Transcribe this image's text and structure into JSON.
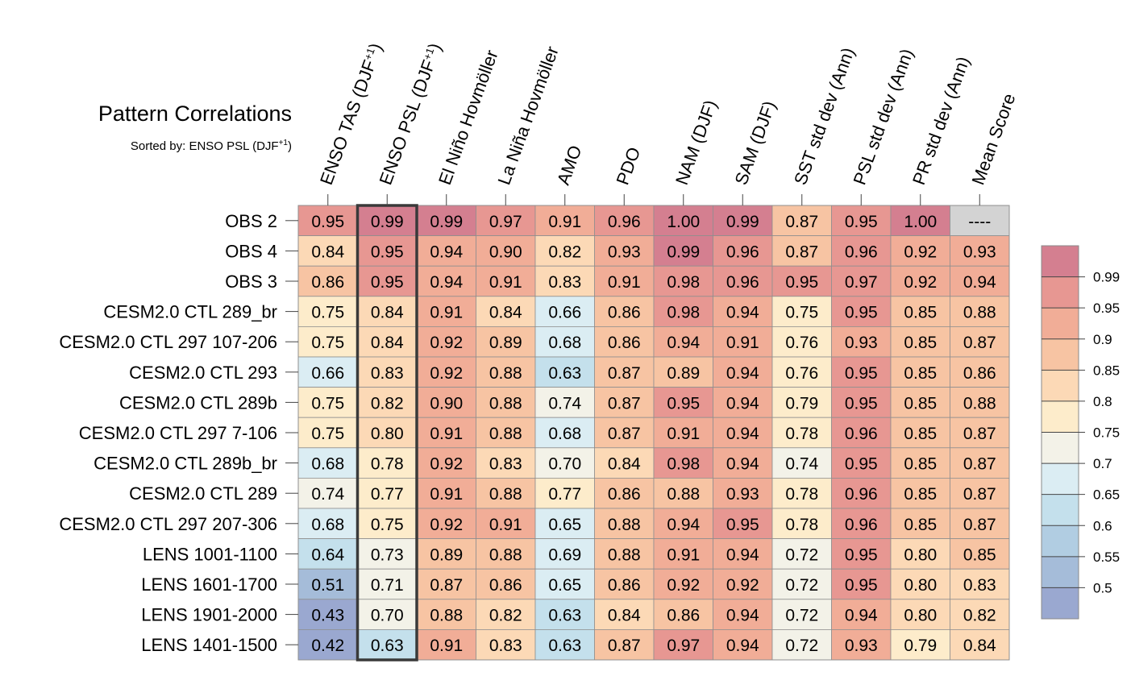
{
  "chart_data": {
    "type": "heatmap",
    "title": "Pattern Correlations",
    "subtitle": {
      "prefix": "Sorted by: ENSO PSL (DJF",
      "sup": "+1",
      "suffix": ")"
    },
    "columns": [
      {
        "label": "ENSO TAS (DJF",
        "sup": "+1",
        "suffix": ")"
      },
      {
        "label": "ENSO PSL (DJF",
        "sup": "+1",
        "suffix": ")"
      },
      {
        "label": "El Niño Hovmöller"
      },
      {
        "label": "La Niña Hovmöller"
      },
      {
        "label": "AMO"
      },
      {
        "label": "PDO"
      },
      {
        "label": "NAM (DJF)"
      },
      {
        "label": "SAM (DJF)"
      },
      {
        "label": "SST std dev (Ann)"
      },
      {
        "label": "PSL std dev (Ann)"
      },
      {
        "label": "PR std dev (Ann)"
      },
      {
        "label": "Mean Score"
      }
    ],
    "sorted_column_index": 1,
    "rows": [
      "OBS 2",
      "OBS 4",
      "OBS 3",
      "CESM2.0 CTL 289_br",
      "CESM2.0 CTL 297 107-206",
      "CESM2.0 CTL 293",
      "CESM2.0 CTL 289b",
      "CESM2.0 CTL 297 7-106",
      "CESM2.0 CTL 289b_br",
      "CESM2.0 CTL 289",
      "CESM2.0 CTL 297 207-306",
      "LENS 1001-1100",
      "LENS 1601-1700",
      "LENS 1901-2000",
      "LENS 1401-1500"
    ],
    "values": [
      [
        "0.95",
        "0.99",
        "0.99",
        "0.97",
        "0.91",
        "0.96",
        "1.00",
        "0.99",
        "0.87",
        "0.95",
        "1.00",
        "----"
      ],
      [
        "0.84",
        "0.95",
        "0.94",
        "0.90",
        "0.82",
        "0.93",
        "0.99",
        "0.96",
        "0.87",
        "0.96",
        "0.92",
        "0.93"
      ],
      [
        "0.86",
        "0.95",
        "0.94",
        "0.91",
        "0.83",
        "0.91",
        "0.98",
        "0.96",
        "0.95",
        "0.97",
        "0.92",
        "0.94"
      ],
      [
        "0.75",
        "0.84",
        "0.91",
        "0.84",
        "0.66",
        "0.86",
        "0.98",
        "0.94",
        "0.75",
        "0.95",
        "0.85",
        "0.88"
      ],
      [
        "0.75",
        "0.84",
        "0.92",
        "0.89",
        "0.68",
        "0.86",
        "0.94",
        "0.91",
        "0.76",
        "0.93",
        "0.85",
        "0.87"
      ],
      [
        "0.66",
        "0.83",
        "0.92",
        "0.88",
        "0.63",
        "0.87",
        "0.89",
        "0.94",
        "0.76",
        "0.95",
        "0.85",
        "0.86"
      ],
      [
        "0.75",
        "0.82",
        "0.90",
        "0.88",
        "0.74",
        "0.87",
        "0.95",
        "0.94",
        "0.79",
        "0.95",
        "0.85",
        "0.88"
      ],
      [
        "0.75",
        "0.80",
        "0.91",
        "0.88",
        "0.68",
        "0.87",
        "0.91",
        "0.94",
        "0.78",
        "0.96",
        "0.85",
        "0.87"
      ],
      [
        "0.68",
        "0.78",
        "0.92",
        "0.83",
        "0.70",
        "0.84",
        "0.98",
        "0.94",
        "0.74",
        "0.95",
        "0.85",
        "0.87"
      ],
      [
        "0.74",
        "0.77",
        "0.91",
        "0.88",
        "0.77",
        "0.86",
        "0.88",
        "0.93",
        "0.78",
        "0.96",
        "0.85",
        "0.87"
      ],
      [
        "0.68",
        "0.75",
        "0.92",
        "0.91",
        "0.65",
        "0.88",
        "0.94",
        "0.95",
        "0.78",
        "0.96",
        "0.85",
        "0.87"
      ],
      [
        "0.64",
        "0.73",
        "0.89",
        "0.88",
        "0.69",
        "0.88",
        "0.91",
        "0.94",
        "0.72",
        "0.95",
        "0.80",
        "0.85"
      ],
      [
        "0.51",
        "0.71",
        "0.87",
        "0.86",
        "0.65",
        "0.86",
        "0.92",
        "0.92",
        "0.72",
        "0.95",
        "0.80",
        "0.83"
      ],
      [
        "0.43",
        "0.70",
        "0.88",
        "0.82",
        "0.63",
        "0.84",
        "0.86",
        "0.94",
        "0.72",
        "0.94",
        "0.80",
        "0.82"
      ],
      [
        "0.42",
        "0.63",
        "0.91",
        "0.83",
        "0.63",
        "0.87",
        "0.97",
        "0.94",
        "0.72",
        "0.93",
        "0.79",
        "0.84"
      ]
    ],
    "missing_value_color": "#d3d3d3",
    "colorbar": {
      "levels": [
        "0.99",
        "0.95",
        "0.9",
        "0.85",
        "0.8",
        "0.75",
        "0.7",
        "0.65",
        "0.6",
        "0.55",
        "0.5"
      ],
      "thresholds": [
        0.99,
        0.95,
        0.9,
        0.85,
        0.8,
        0.75,
        0.7,
        0.65,
        0.6,
        0.55,
        0.5
      ],
      "colors": [
        "#d47f90",
        "#e79792",
        "#f1ad97",
        "#f7c4a3",
        "#fcd9b6",
        "#fdeccb",
        "#f3f2e8",
        "#dbedf3",
        "#c4e0ec",
        "#b1cde2",
        "#a5bcd9",
        "#9aa8d0"
      ]
    }
  }
}
